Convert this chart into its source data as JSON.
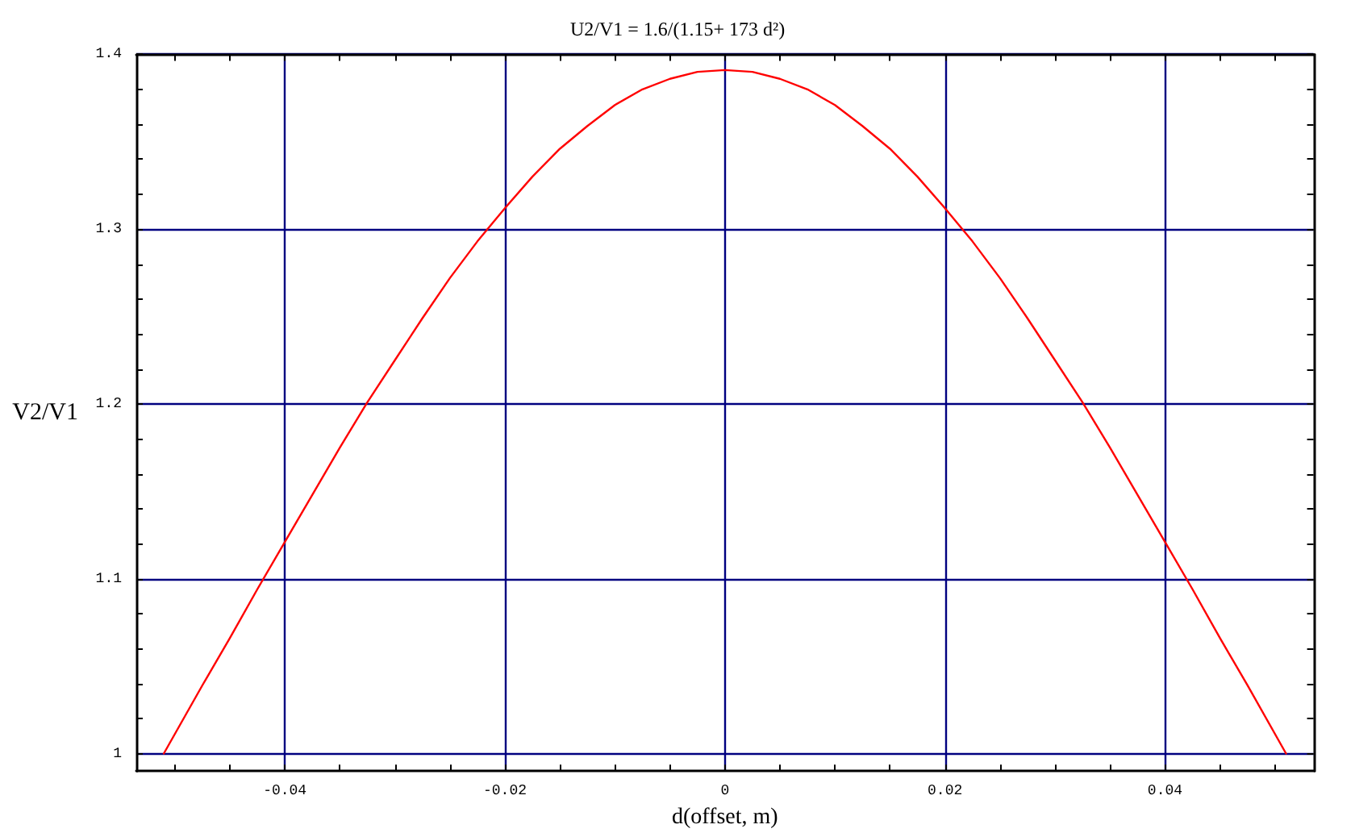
{
  "chart_data": {
    "type": "line",
    "title": "U2/V1 = 1.6/(1.15+ 173 d²)",
    "xlabel": "d(offset, m)",
    "ylabel": "V2/V1",
    "x": [
      -0.051,
      -0.0475,
      -0.045,
      -0.0425,
      -0.04,
      -0.0375,
      -0.035,
      -0.0325,
      -0.03,
      -0.0275,
      -0.025,
      -0.0225,
      -0.02,
      -0.0175,
      -0.015,
      -0.0125,
      -0.01,
      -0.0075,
      -0.005,
      -0.0025,
      0,
      0.0025,
      0.005,
      0.0075,
      0.01,
      0.0125,
      0.015,
      0.0175,
      0.02,
      0.0225,
      0.025,
      0.0275,
      0.03,
      0.0325,
      0.035,
      0.0375,
      0.04,
      0.0425,
      0.045,
      0.0475,
      0.051
    ],
    "series": [
      {
        "color": "#ff0000",
        "values": [
          1.0,
          1.039,
          1.066,
          1.094,
          1.121,
          1.148,
          1.175,
          1.201,
          1.225,
          1.249,
          1.272,
          1.293,
          1.312,
          1.33,
          1.346,
          1.359,
          1.371,
          1.38,
          1.386,
          1.39,
          1.391,
          1.39,
          1.386,
          1.38,
          1.371,
          1.359,
          1.346,
          1.33,
          1.312,
          1.293,
          1.272,
          1.249,
          1.225,
          1.201,
          1.175,
          1.148,
          1.121,
          1.094,
          1.066,
          1.039,
          1.0
        ]
      }
    ],
    "xlim": [
      -0.0535,
      0.0535
    ],
    "xticks": [
      {
        "value": -0.05,
        "label": null
      },
      {
        "value": -0.045,
        "label": null
      },
      -0.04,
      {
        "value": -0.035,
        "label": null
      },
      {
        "value": -0.03,
        "label": null
      },
      {
        "value": -0.025,
        "label": null
      },
      -0.02,
      {
        "value": -0.015,
        "label": null
      },
      {
        "value": -0.01,
        "label": null
      },
      {
        "value": -0.005,
        "label": null
      },
      0,
      {
        "value": 0.005,
        "label": null
      },
      {
        "value": 0.01,
        "label": null
      },
      {
        "value": 0.015,
        "label": null
      },
      0.02,
      {
        "value": 0.025,
        "label": null
      },
      {
        "value": 0.03,
        "label": null
      },
      {
        "value": 0.035,
        "label": null
      },
      0.04,
      {
        "value": 0.045,
        "label": null
      },
      {
        "value": 0.05,
        "label": null
      }
    ],
    "ylim": [
      0.99,
      1.4
    ],
    "yticks": [
      1,
      {
        "value": 1.02,
        "label": null
      },
      {
        "value": 1.04,
        "label": null
      },
      {
        "value": 1.06,
        "label": null
      },
      {
        "value": 1.08,
        "label": null
      },
      1.1,
      {
        "value": 1.12,
        "label": null
      },
      {
        "value": 1.14,
        "label": null
      },
      {
        "value": 1.16,
        "label": null
      },
      {
        "value": 1.18,
        "label": null
      },
      1.2,
      {
        "value": 1.22,
        "label": null
      },
      {
        "value": 1.24,
        "label": null
      },
      {
        "value": 1.26,
        "label": null
      },
      {
        "value": 1.28,
        "label": null
      },
      1.3,
      {
        "value": 1.32,
        "label": null
      },
      {
        "value": 1.34,
        "label": null
      },
      {
        "value": 1.36,
        "label": null
      },
      {
        "value": 1.38,
        "label": null
      },
      1.4
    ],
    "grid": true
  }
}
